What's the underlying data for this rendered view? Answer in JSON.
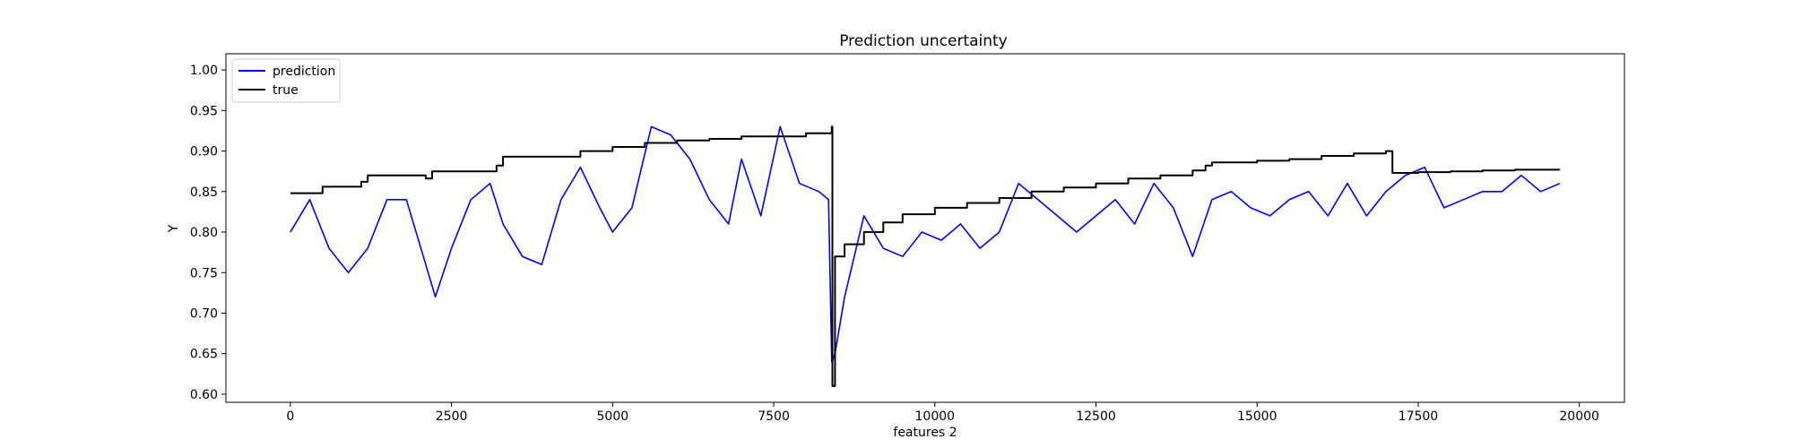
{
  "chart_data": {
    "type": "line",
    "title": "Prediction uncertainty",
    "xlabel": "features 2",
    "ylabel": "Y",
    "xlim": [
      -1000,
      20700
    ],
    "ylim": [
      0.59,
      1.02
    ],
    "x_ticks": [
      0,
      2500,
      5000,
      7500,
      10000,
      12500,
      15000,
      17500,
      20000
    ],
    "y_ticks": [
      0.6,
      0.65,
      0.7,
      0.75,
      0.8,
      0.85,
      0.9,
      0.95,
      1.0
    ],
    "x_tick_labels": [
      "0",
      "2500",
      "5000",
      "7500",
      "10000",
      "12500",
      "15000",
      "17500",
      "20000"
    ],
    "y_tick_labels": [
      "0.60",
      "0.65",
      "0.70",
      "0.75",
      "0.80",
      "0.85",
      "0.90",
      "0.95",
      "1.00"
    ],
    "legend_position": "top-left",
    "grid": false,
    "colors": {
      "prediction": "#0000ff",
      "true": "#000000"
    },
    "series": [
      {
        "name": "prediction",
        "color": "#0000ff",
        "x": [
          0,
          300,
          600,
          900,
          1200,
          1500,
          1800,
          2100,
          2250,
          2500,
          2800,
          3100,
          3300,
          3600,
          3900,
          4200,
          4500,
          4800,
          5000,
          5300,
          5600,
          5900,
          6200,
          6500,
          6800,
          7000,
          7300,
          7600,
          7900,
          8200,
          8350,
          8400,
          8450,
          8600,
          8900,
          9200,
          9500,
          9800,
          10100,
          10400,
          10700,
          11000,
          11300,
          11600,
          11900,
          12200,
          12500,
          12800,
          13100,
          13400,
          13700,
          14000,
          14300,
          14600,
          14900,
          15200,
          15500,
          15800,
          16100,
          16400,
          16700,
          17000,
          17300,
          17600,
          17900,
          18200,
          18500,
          18800,
          19100,
          19400,
          19700
        ],
        "y": [
          0.8,
          0.84,
          0.78,
          0.75,
          0.78,
          0.84,
          0.84,
          0.76,
          0.72,
          0.78,
          0.84,
          0.86,
          0.81,
          0.77,
          0.76,
          0.84,
          0.88,
          0.83,
          0.8,
          0.83,
          0.93,
          0.92,
          0.89,
          0.84,
          0.81,
          0.89,
          0.82,
          0.93,
          0.86,
          0.85,
          0.84,
          0.64,
          0.65,
          0.72,
          0.82,
          0.78,
          0.77,
          0.8,
          0.79,
          0.81,
          0.78,
          0.8,
          0.86,
          0.84,
          0.82,
          0.8,
          0.82,
          0.84,
          0.81,
          0.86,
          0.83,
          0.77,
          0.84,
          0.85,
          0.83,
          0.82,
          0.84,
          0.85,
          0.82,
          0.86,
          0.82,
          0.85,
          0.87,
          0.88,
          0.83,
          0.84,
          0.85,
          0.85,
          0.87,
          0.85,
          0.86
        ]
      },
      {
        "name": "true",
        "color": "#000000",
        "x": [
          0,
          500,
          1100,
          1200,
          2100,
          2200,
          3200,
          3300,
          4500,
          5000,
          5500,
          6000,
          6500,
          7000,
          7500,
          8000,
          8400,
          8410,
          8450,
          8600,
          8900,
          9200,
          9500,
          10000,
          10500,
          11000,
          11500,
          12000,
          12500,
          13000,
          13500,
          14000,
          14200,
          14300,
          15000,
          15500,
          16000,
          16500,
          17000,
          17100,
          17500,
          18000,
          18500,
          19000,
          19500,
          19700
        ],
        "y": [
          0.848,
          0.856,
          0.862,
          0.87,
          0.866,
          0.875,
          0.882,
          0.893,
          0.9,
          0.905,
          0.91,
          0.913,
          0.915,
          0.918,
          0.918,
          0.922,
          0.93,
          0.61,
          0.77,
          0.785,
          0.8,
          0.812,
          0.822,
          0.83,
          0.836,
          0.842,
          0.85,
          0.855,
          0.86,
          0.866,
          0.87,
          0.876,
          0.882,
          0.886,
          0.888,
          0.89,
          0.894,
          0.897,
          0.9,
          0.873,
          0.874,
          0.875,
          0.876,
          0.877,
          0.877,
          0.877
        ]
      }
    ]
  }
}
